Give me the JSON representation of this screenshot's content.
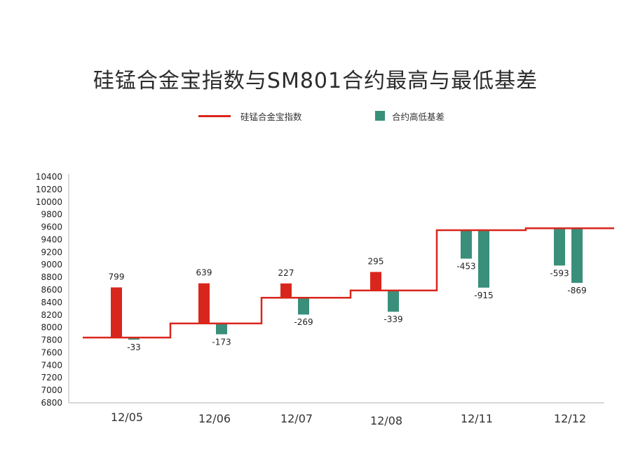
{
  "title": "硅锰合金宝指数与SM801合约最高与最低基差",
  "legend": {
    "index_label": "硅锰合金宝指数",
    "basis_label": "合约高低基差"
  },
  "colors": {
    "index_line": "#d9261c",
    "positive_bar": "#d9261c",
    "negative_bar": "#3a8f7b",
    "axis": "#cccccc",
    "text": "#222222"
  },
  "chart_data": {
    "type": "bar",
    "title": "硅锰合金宝指数与SM801合约最高与最低基差",
    "xlabel": "",
    "ylabel": "",
    "ylim": [
      6800,
      10400
    ],
    "y_ticks": [
      6800,
      7000,
      7200,
      7400,
      7600,
      7800,
      8000,
      8200,
      8400,
      8600,
      8800,
      9000,
      9200,
      9400,
      9600,
      9800,
      10000,
      10200,
      10400
    ],
    "grid": false,
    "legend_position": "top",
    "categories": [
      "12/05",
      "12/06",
      "12/07",
      "12/08",
      "12/11",
      "12/12"
    ],
    "series": [
      {
        "name": "硅锰合金宝指数",
        "type": "step-line",
        "values": [
          7840,
          8065,
          8475,
          8590,
          9550,
          9580
        ]
      },
      {
        "name": "合约高低基差",
        "type": "bar",
        "high_basis": [
          799,
          639,
          227,
          295,
          -453,
          -593
        ],
        "low_basis": [
          -33,
          -173,
          -269,
          -339,
          -915,
          -869
        ]
      }
    ]
  }
}
